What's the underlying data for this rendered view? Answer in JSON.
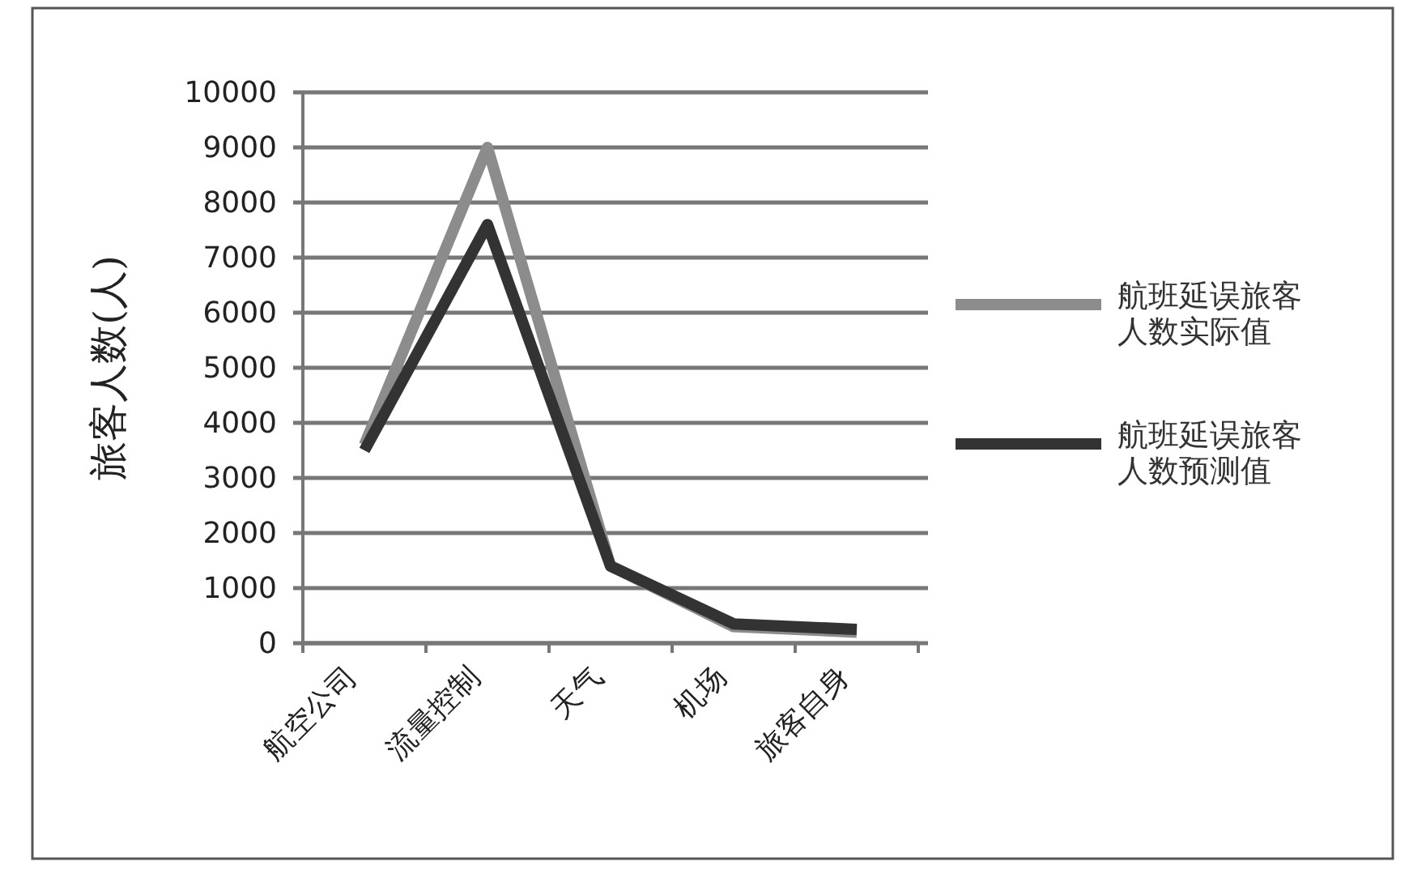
{
  "chart_data": {
    "type": "line",
    "ylabel": "旅客人数(人)",
    "categories": [
      "航空公司",
      "流量控制",
      "天气",
      "机场",
      "旅客自身"
    ],
    "series": [
      {
        "name": "航班延误旅客人数实际值",
        "color": "#8c8c8c",
        "values": [
          3600,
          9000,
          1400,
          300,
          200
        ]
      },
      {
        "name": "航班延误旅客人数预测值",
        "color": "#333333",
        "values": [
          3500,
          7600,
          1400,
          350,
          250
        ]
      }
    ],
    "ylim": [
      0,
      10000
    ],
    "yticks": [
      0,
      1000,
      2000,
      3000,
      4000,
      5000,
      6000,
      7000,
      8000,
      9000,
      10000
    ],
    "grid": "y",
    "legend": "right"
  }
}
